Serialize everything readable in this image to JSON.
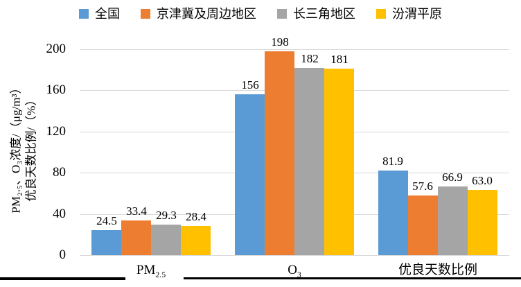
{
  "chart_data": {
    "type": "bar",
    "title": "",
    "categories": [
      {
        "base": "PM",
        "sub": "2.5"
      },
      {
        "base": "O",
        "sub": "3"
      },
      {
        "base": "优良天数比例",
        "sub": ""
      }
    ],
    "series": [
      {
        "name": "全国",
        "color": "#5B9BD5",
        "values": [
          24.5,
          156,
          81.9
        ],
        "labels": [
          "24.5",
          "156",
          "81.9"
        ]
      },
      {
        "name": "京津冀及周边地区",
        "color": "#ED7D31",
        "values": [
          33.4,
          198,
          57.6
        ],
        "labels": [
          "33.4",
          "198",
          "57.6"
        ]
      },
      {
        "name": "长三角地区",
        "color": "#A5A5A5",
        "values": [
          29.3,
          182,
          66.9
        ],
        "labels": [
          "29.3",
          "182",
          "66.9"
        ]
      },
      {
        "name": "汾渭平原",
        "color": "#FFC000",
        "values": [
          28.4,
          181,
          63.0
        ],
        "labels": [
          "28.4",
          "181",
          "63.0"
        ]
      }
    ],
    "ylabel_lines": [
      "PM₂.₅、O₃浓度/（μg/m³）",
      "优良天数比例/（%）"
    ],
    "yticks": [
      "0",
      "40",
      "80",
      "120",
      "160",
      "200"
    ],
    "ytick_values": [
      0,
      40,
      80,
      120,
      160,
      200
    ],
    "ylim": [
      0,
      200
    ],
    "grid": true,
    "gridline_color": "#D9D9D9",
    "legend_position": "top",
    "xlabel": "",
    "ylabel": "PM2.5、O3浓度/（μg/m³） 优良天数比例/（%）"
  }
}
